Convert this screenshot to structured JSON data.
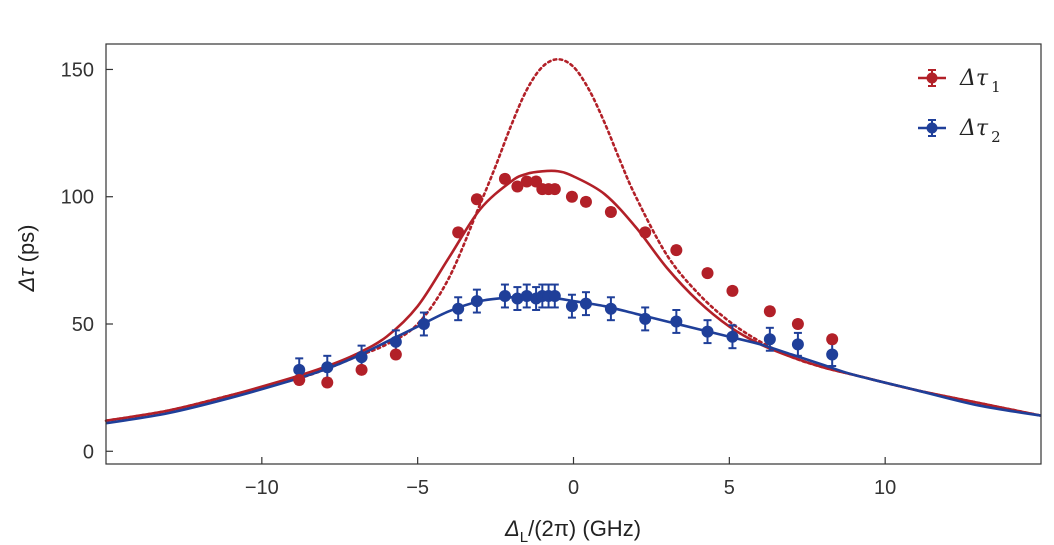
{
  "chart_data": {
    "type": "scatter",
    "title": "",
    "xlabel": {
      "main": "Δ",
      "sub": "L",
      "rest": "/(2π) (GHz)"
    },
    "ylabel": {
      "main": "Δτ",
      "rest": " (ps)"
    },
    "xlim": [
      -15,
      15
    ],
    "ylim": [
      -5,
      160
    ],
    "xticks": [
      -10,
      -5,
      0,
      5,
      10
    ],
    "xtick_labels": [
      "−10",
      "−5",
      "0",
      "5",
      "10"
    ],
    "yticks": [
      0,
      50,
      100,
      150
    ],
    "ytick_labels": [
      "0",
      "50",
      "100",
      "150"
    ],
    "grid": false,
    "legend_position": "top-right",
    "colors": {
      "red": "#b22028",
      "blue": "#1f3f99"
    },
    "series": [
      {
        "name": "Δτ",
        "subscript": "1",
        "color": "#b22028",
        "x": [
          -8.8,
          -7.9,
          -6.8,
          -5.7,
          -3.7,
          -3.1,
          -2.2,
          -1.8,
          -1.5,
          -1.2,
          -1.0,
          -0.8,
          -0.6,
          -0.05,
          0.4,
          1.2,
          2.3,
          3.3,
          4.3,
          5.1,
          6.3,
          7.2,
          8.3
        ],
        "y": [
          28,
          27,
          32,
          38,
          86,
          99,
          107,
          104,
          106,
          106,
          103,
          103,
          103,
          100,
          98,
          94,
          86,
          79,
          70,
          63,
          55,
          50,
          44
        ],
        "yerr": [
          1.5,
          1.5,
          1.5,
          1.5,
          1.5,
          1.5,
          1.5,
          1.5,
          1.5,
          1.5,
          1.5,
          1.5,
          1.5,
          1.5,
          1.5,
          1.5,
          1.5,
          1.5,
          1.5,
          1.5,
          1.5,
          1.5,
          1.5
        ]
      },
      {
        "name": "Δτ",
        "subscript": "2",
        "color": "#1f3f99",
        "x": [
          -8.8,
          -7.9,
          -6.8,
          -5.7,
          -4.8,
          -3.7,
          -3.1,
          -2.2,
          -1.8,
          -1.5,
          -1.2,
          -1.0,
          -0.8,
          -0.6,
          -0.05,
          0.4,
          1.2,
          2.3,
          3.3,
          4.3,
          5.1,
          6.3,
          7.2,
          8.3
        ],
        "y": [
          32,
          33,
          37,
          43,
          50,
          56,
          59,
          61,
          60,
          61,
          60,
          61,
          61,
          61,
          57,
          58,
          56,
          52,
          51,
          47,
          45,
          44,
          42,
          38
        ],
        "yerr": [
          4.5,
          4.5,
          4.5,
          4.5,
          4.5,
          4.5,
          4.5,
          4.5,
          4.5,
          4.5,
          4.5,
          4.5,
          4.5,
          4.5,
          4.5,
          4.5,
          4.5,
          4.5,
          4.5,
          4.5,
          4.5,
          4.5,
          4.5,
          4.5
        ]
      }
    ],
    "fit_curves": [
      {
        "color": "#b22028",
        "style": "solid",
        "x": [
          -15,
          -13,
          -11,
          -9,
          -8,
          -7,
          -6,
          -5,
          -4,
          -3,
          -2,
          -1.5,
          -1,
          -0.5,
          0,
          1,
          2,
          3,
          4,
          5,
          6,
          7,
          8,
          9,
          11,
          13,
          15
        ],
        "y": [
          12,
          16,
          22,
          29,
          33,
          38,
          45,
          57,
          76,
          95,
          106,
          109,
          110,
          110,
          108,
          101,
          88,
          72,
          59,
          49,
          42,
          37,
          33,
          30,
          24,
          19,
          14
        ]
      },
      {
        "color": "#b22028",
        "style": "dotted",
        "x": [
          -15,
          -13,
          -11,
          -9,
          -8,
          -7,
          -6,
          -5,
          -4,
          -3,
          -2.5,
          -2,
          -1.5,
          -1,
          -0.5,
          0,
          0.5,
          1,
          1.5,
          2,
          3,
          4,
          5,
          6,
          7,
          8,
          9,
          11,
          13,
          15
        ],
        "y": [
          12,
          16,
          22,
          28,
          32,
          37,
          42,
          50,
          68,
          97,
          112,
          128,
          142,
          151,
          154,
          151,
          142,
          129,
          114,
          100,
          77,
          62,
          51,
          43,
          37,
          33,
          30,
          24,
          19,
          14
        ]
      },
      {
        "color": "#1f3f99",
        "style": "solid",
        "x": [
          -15,
          -13,
          -11,
          -9,
          -8,
          -7,
          -6,
          -5,
          -4,
          -3,
          -2,
          -1.5,
          -1,
          -0.5,
          0,
          1,
          2,
          3,
          4,
          5,
          6,
          7,
          8,
          9,
          11,
          13,
          15
        ],
        "y": [
          11,
          15,
          21,
          28,
          32,
          37,
          43,
          49,
          55,
          59,
          60.5,
          61,
          60.5,
          60,
          59,
          57,
          54,
          51,
          48,
          45,
          42,
          38,
          34,
          30,
          24,
          18,
          14
        ]
      }
    ]
  }
}
